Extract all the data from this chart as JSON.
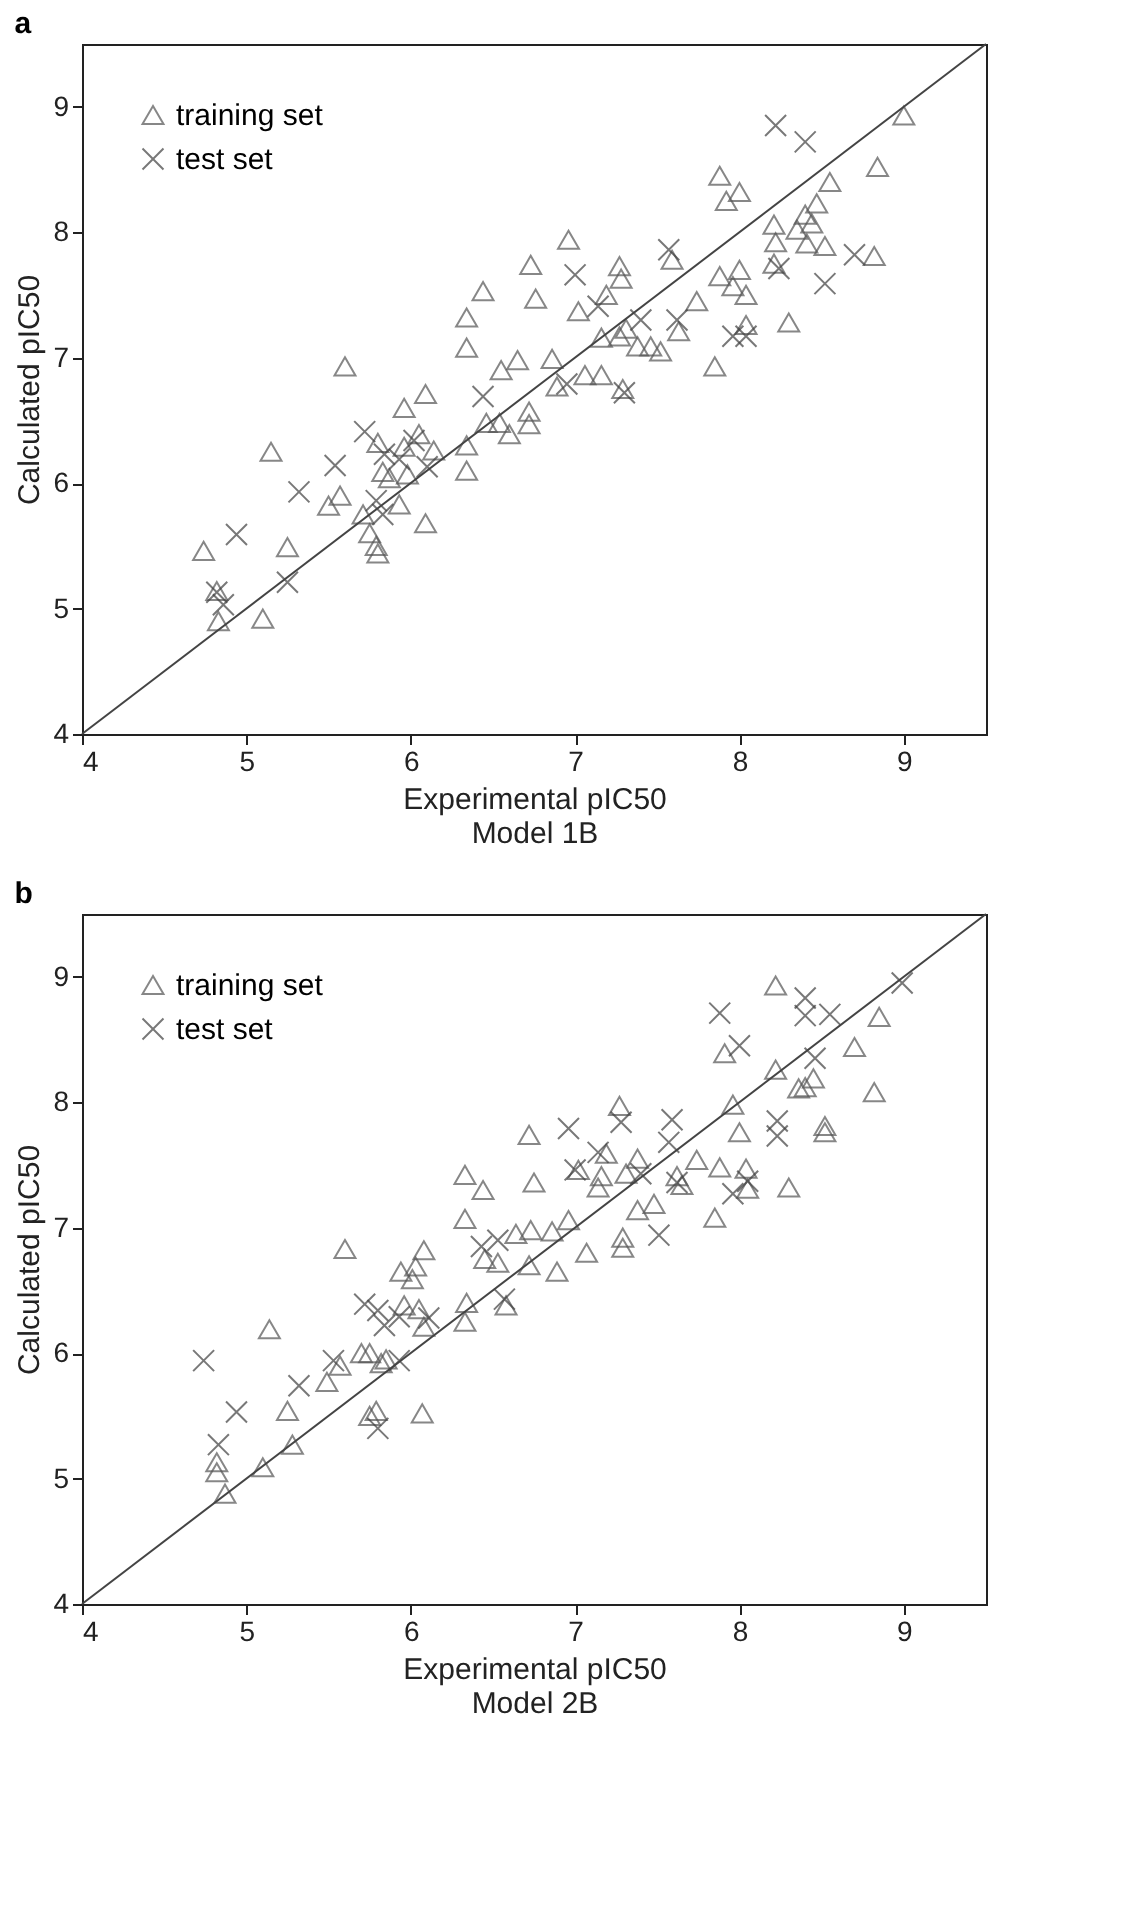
{
  "chart_data": [
    {
      "type": "scatter",
      "title": "a",
      "xlabel": "Experimental pIC50",
      "ylabel": "Calculated pIC50",
      "annotations": [
        "Model 1B"
      ],
      "xlim": [
        4,
        9.5
      ],
      "ylim": [
        4,
        9.5
      ],
      "xticks": [
        4,
        5,
        6,
        7,
        8,
        9
      ],
      "yticks": [
        4,
        5,
        6,
        7,
        8,
        9
      ],
      "legend": "top left",
      "series": [
        {
          "name": "training set",
          "type": "scatter",
          "marker": "triangle",
          "color": "#555555",
          "x": [
            4.74,
            4.82,
            4.83,
            5.1,
            5.15,
            5.25,
            5.5,
            5.57,
            5.6,
            5.71,
            5.75,
            5.79,
            5.8,
            5.8,
            5.83,
            5.87,
            5.93,
            5.96,
            5.96,
            5.98,
            6.05,
            6.09,
            6.09,
            6.14,
            6.34,
            6.34,
            6.34,
            6.34,
            6.44,
            6.46,
            6.55,
            6.54,
            6.6,
            6.65,
            6.73,
            6.76,
            6.72,
            6.72,
            6.86,
            6.89,
            6.96,
            7.02,
            7.06,
            7.16,
            7.19,
            7.16,
            7.27,
            7.28,
            7.27,
            7.29,
            7.31,
            7.38,
            7.46,
            7.52,
            7.59,
            7.63,
            7.74,
            7.85,
            7.88,
            7.92,
            8.0,
            7.88,
            7.96,
            8.0,
            8.04,
            8.04,
            8.21,
            8.22,
            8.21,
            8.3,
            8.35,
            8.4,
            8.41,
            8.44,
            8.47,
            8.52,
            8.55,
            8.82,
            8.84,
            9.0
          ],
          "values": [
            5.46,
            5.14,
            4.9,
            4.92,
            6.25,
            5.49,
            5.82,
            5.9,
            6.93,
            5.75,
            5.6,
            5.5,
            5.44,
            6.32,
            6.09,
            6.04,
            5.83,
            6.6,
            6.29,
            6.07,
            6.39,
            6.71,
            5.68,
            6.26,
            7.32,
            7.08,
            6.3,
            6.1,
            7.53,
            6.48,
            6.9,
            6.48,
            6.39,
            6.98,
            7.74,
            7.47,
            6.57,
            6.47,
            6.99,
            6.77,
            7.94,
            7.37,
            6.86,
            6.86,
            7.5,
            7.16,
            7.73,
            7.63,
            7.17,
            6.75,
            7.23,
            7.09,
            7.09,
            7.05,
            7.78,
            7.21,
            7.45,
            6.93,
            8.45,
            8.25,
            8.32,
            7.65,
            7.57,
            7.7,
            7.5,
            7.26,
            8.06,
            7.92,
            7.75,
            7.28,
            8.02,
            8.14,
            7.91,
            8.07,
            8.23,
            7.89,
            8.4,
            7.81,
            8.52,
            8.93
          ]
        },
        {
          "name": "test set",
          "type": "scatter",
          "marker": "cross",
          "color": "#404040",
          "x": [
            4.82,
            4.86,
            4.94,
            5.25,
            5.32,
            5.54,
            5.72,
            5.79,
            5.84,
            5.83,
            5.93,
            6.02,
            6.1,
            6.44,
            6.95,
            7.0,
            7.14,
            7.4,
            7.3,
            7.57,
            7.62,
            7.96,
            8.04,
            8.22,
            8.4,
            8.24,
            8.52,
            8.7
          ],
          "values": [
            5.13,
            5.03,
            5.59,
            5.21,
            5.93,
            6.14,
            6.41,
            5.86,
            6.23,
            5.75,
            6.19,
            6.34,
            6.13,
            6.69,
            6.79,
            7.66,
            7.41,
            7.3,
            6.72,
            7.86,
            7.3,
            7.17,
            7.17,
            8.85,
            8.72,
            7.71,
            7.59,
            7.82
          ]
        },
        {
          "type": "line",
          "color": "#444444",
          "line_style": "solid",
          "x": [
            4,
            9.5
          ],
          "values": [
            4,
            9.5
          ]
        }
      ]
    },
    {
      "type": "scatter",
      "title": "b",
      "xlabel": "Experimental pIC50",
      "ylabel": "Calculated pIC50",
      "annotations": [
        "Model 2B"
      ],
      "xlim": [
        4,
        9.5
      ],
      "ylim": [
        4,
        9.5
      ],
      "xticks": [
        4,
        5,
        6,
        7,
        8,
        9
      ],
      "yticks": [
        4,
        5,
        6,
        7,
        8,
        9
      ],
      "legend": "top left",
      "series": [
        {
          "name": "training set",
          "type": "scatter",
          "marker": "triangle",
          "color": "#555555",
          "x": [
            4.82,
            4.82,
            4.87,
            5.1,
            5.14,
            5.25,
            5.28,
            5.49,
            5.57,
            5.6,
            5.7,
            5.75,
            5.75,
            5.79,
            5.82,
            5.85,
            5.94,
            5.96,
            6.01,
            6.03,
            6.05,
            6.08,
            6.08,
            6.07,
            6.33,
            6.33,
            6.34,
            6.33,
            6.44,
            6.45,
            6.53,
            6.58,
            6.64,
            6.72,
            6.75,
            6.72,
            6.73,
            6.86,
            6.89,
            6.96,
            7.02,
            7.07,
            7.14,
            7.16,
            7.19,
            7.27,
            7.29,
            7.29,
            7.31,
            7.38,
            7.38,
            7.48,
            7.62,
            7.65,
            7.74,
            7.85,
            7.88,
            7.91,
            7.96,
            8.0,
            8.04,
            8.05,
            8.22,
            8.22,
            8.3,
            8.36,
            8.4,
            8.45,
            8.52,
            8.52,
            8.7,
            8.82,
            8.85
          ],
          "values": [
            5.13,
            5.05,
            4.88,
            5.09,
            6.19,
            5.54,
            5.27,
            5.77,
            5.9,
            6.83,
            6.0,
            6.0,
            5.5,
            5.54,
            5.92,
            5.95,
            6.65,
            6.38,
            6.59,
            6.69,
            6.35,
            6.82,
            6.21,
            5.52,
            7.42,
            7.07,
            6.4,
            6.25,
            7.3,
            6.75,
            6.72,
            6.38,
            6.95,
            7.74,
            7.36,
            6.7,
            6.98,
            6.97,
            6.65,
            7.06,
            7.46,
            6.8,
            7.32,
            7.41,
            7.59,
            7.97,
            6.92,
            6.84,
            7.43,
            7.55,
            7.14,
            7.19,
            7.41,
            7.34,
            7.54,
            7.08,
            7.48,
            8.39,
            7.98,
            7.76,
            7.47,
            7.31,
            8.93,
            8.26,
            7.32,
            8.11,
            8.12,
            8.19,
            7.81,
            7.76,
            8.44,
            8.08,
            8.68
          ]
        },
        {
          "name": "test set",
          "type": "scatter",
          "marker": "cross",
          "color": "#404040",
          "x": [
            4.74,
            4.83,
            4.94,
            5.32,
            5.53,
            5.72,
            5.8,
            5.84,
            5.8,
            5.93,
            5.93,
            6.11,
            6.43,
            6.53,
            6.57,
            6.96,
            7.0,
            7.14,
            7.28,
            7.4,
            7.51,
            7.59,
            7.57,
            7.62,
            7.88,
            8.0,
            7.96,
            8.05,
            8.23,
            8.23,
            8.4,
            8.4,
            8.55,
            8.46,
            8.99
          ],
          "values": [
            5.94,
            5.27,
            5.53,
            5.74,
            5.94,
            6.39,
            6.34,
            6.22,
            5.4,
            6.29,
            5.94,
            6.28,
            6.85,
            6.9,
            6.43,
            7.79,
            7.46,
            7.6,
            7.84,
            7.43,
            6.94,
            7.86,
            7.68,
            7.36,
            8.71,
            8.45,
            7.27,
            7.37,
            7.85,
            7.73,
            8.83,
            8.69,
            8.7,
            8.35,
            8.95
          ]
        },
        {
          "type": "line",
          "color": "#444444",
          "line_style": "solid",
          "x": [
            4,
            9.5
          ],
          "values": [
            4,
            9.5
          ]
        }
      ]
    }
  ]
}
